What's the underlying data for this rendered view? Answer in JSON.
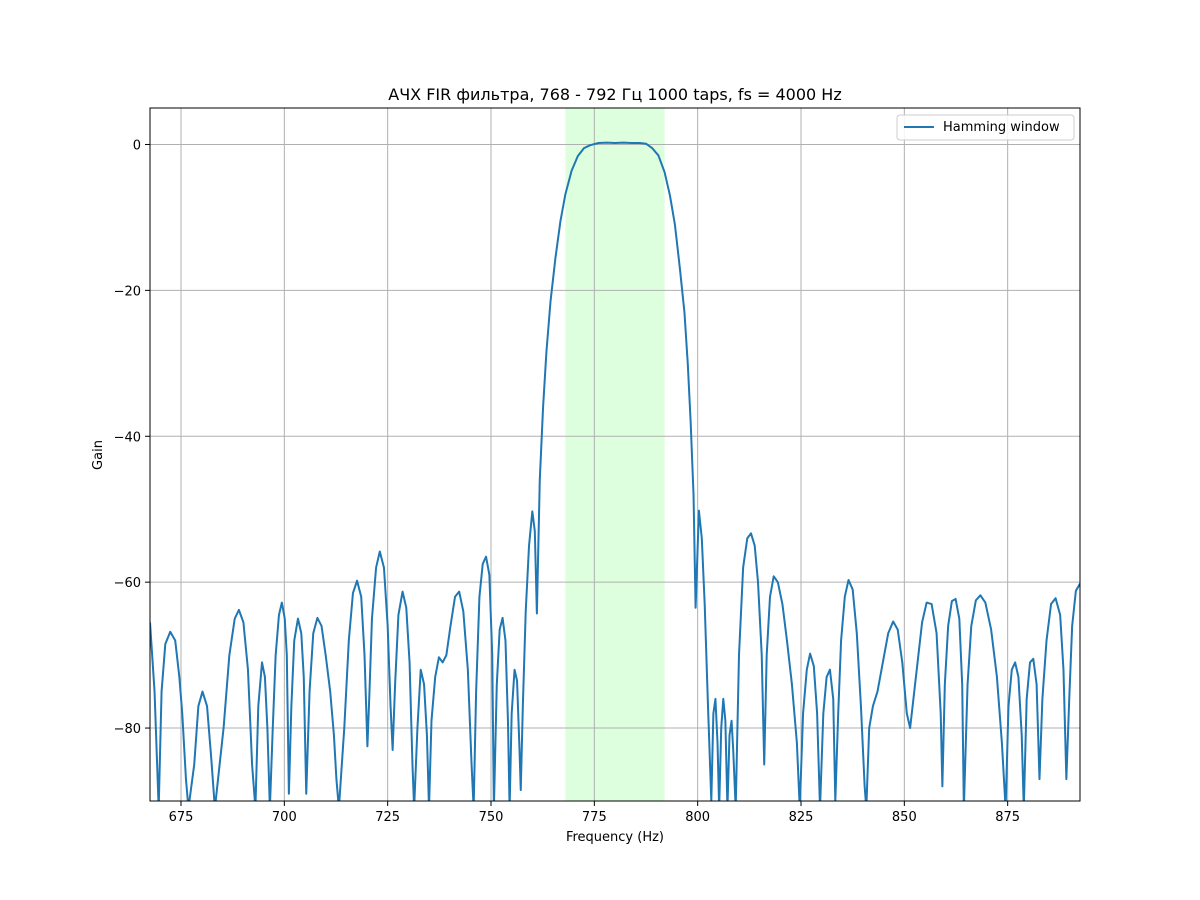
{
  "chart_data": {
    "type": "line",
    "title": "АЧХ FIR фильтра, 768 - 792  Гц 1000 taps, fs = 4000 Hz",
    "xlabel": "Frequency (Hz)",
    "ylabel": "Gain",
    "xlim": [
      667.5,
      892.5
    ],
    "ylim": [
      -90,
      5
    ],
    "xticks": [
      675,
      700,
      725,
      750,
      775,
      800,
      825,
      850,
      875
    ],
    "yticks": [
      0,
      -20,
      -40,
      -60,
      -80
    ],
    "grid": true,
    "legend_position": "top-right",
    "passband_highlight": {
      "x_range": [
        768,
        792
      ],
      "color": "#ddffdd"
    },
    "series": [
      {
        "name": "Hamming window",
        "color": "#1f77b4",
        "points": [
          [
            667.5,
            -65.5
          ],
          [
            668.6,
            -75
          ],
          [
            669.6,
            -91
          ],
          [
            670.3,
            -75
          ],
          [
            671.2,
            -68.5
          ],
          [
            672.4,
            -66.8
          ],
          [
            673.6,
            -68
          ],
          [
            674.6,
            -73
          ],
          [
            675.3,
            -78
          ],
          [
            676.2,
            -87
          ],
          [
            676.8,
            -91
          ],
          [
            678.2,
            -85
          ],
          [
            679.2,
            -77
          ],
          [
            680.2,
            -75
          ],
          [
            681.3,
            -77
          ],
          [
            682.3,
            -84
          ],
          [
            683.2,
            -91
          ],
          [
            685.3,
            -80
          ],
          [
            686.7,
            -70
          ],
          [
            688,
            -65
          ],
          [
            689,
            -63.8
          ],
          [
            690.1,
            -65.5
          ],
          [
            691.2,
            -72
          ],
          [
            692.2,
            -85
          ],
          [
            693,
            -91
          ],
          [
            693.7,
            -77
          ],
          [
            694.6,
            -71
          ],
          [
            695.3,
            -73
          ],
          [
            695.9,
            -80
          ],
          [
            696.5,
            -91
          ],
          [
            697.2,
            -80
          ],
          [
            697.9,
            -70
          ],
          [
            698.7,
            -64.5
          ],
          [
            699.4,
            -62.8
          ],
          [
            700.1,
            -65
          ],
          [
            700.6,
            -70
          ],
          [
            701.1,
            -89
          ],
          [
            701.7,
            -77
          ],
          [
            702.4,
            -68
          ],
          [
            703.3,
            -65
          ],
          [
            704.1,
            -67
          ],
          [
            704.7,
            -73
          ],
          [
            705.3,
            -89
          ],
          [
            706.1,
            -75
          ],
          [
            707,
            -67
          ],
          [
            708,
            -64.9
          ],
          [
            709,
            -66
          ],
          [
            710,
            -70
          ],
          [
            711.1,
            -75
          ],
          [
            712,
            -81
          ],
          [
            712.6,
            -87
          ],
          [
            713.2,
            -91
          ],
          [
            714.5,
            -80
          ],
          [
            715.6,
            -68
          ],
          [
            716.6,
            -61.5
          ],
          [
            717.6,
            -59.8
          ],
          [
            718.6,
            -62
          ],
          [
            719.4,
            -70
          ],
          [
            720.1,
            -82.5
          ],
          [
            720.6,
            -75
          ],
          [
            721.2,
            -65
          ],
          [
            722.2,
            -58
          ],
          [
            723.1,
            -55.8
          ],
          [
            724.1,
            -58
          ],
          [
            725,
            -66
          ],
          [
            725.7,
            -77
          ],
          [
            726.2,
            -83
          ],
          [
            726.8,
            -74
          ],
          [
            727.6,
            -64.5
          ],
          [
            728.6,
            -61.3
          ],
          [
            729.5,
            -63.5
          ],
          [
            730.3,
            -71
          ],
          [
            731,
            -85
          ],
          [
            731.4,
            -91
          ],
          [
            732.2,
            -80
          ],
          [
            733,
            -72
          ],
          [
            733.8,
            -74
          ],
          [
            734.5,
            -81
          ],
          [
            735,
            -91
          ],
          [
            735.6,
            -79
          ],
          [
            736.5,
            -73
          ],
          [
            737.4,
            -70.3
          ],
          [
            738.3,
            -71
          ],
          [
            739.2,
            -70
          ],
          [
            740.2,
            -66
          ],
          [
            741.3,
            -62
          ],
          [
            742.3,
            -61.3
          ],
          [
            743.3,
            -64
          ],
          [
            744.4,
            -72
          ],
          [
            745.3,
            -85
          ],
          [
            745.8,
            -91
          ],
          [
            746.4,
            -75
          ],
          [
            747.2,
            -62
          ],
          [
            748,
            -57.5
          ],
          [
            748.8,
            -56.5
          ],
          [
            749.6,
            -59
          ],
          [
            750.3,
            -70
          ],
          [
            750.7,
            -91
          ],
          [
            751.4,
            -74
          ],
          [
            752.1,
            -66.5
          ],
          [
            752.8,
            -64.9
          ],
          [
            753.5,
            -68
          ],
          [
            754.1,
            -79
          ],
          [
            754.5,
            -91
          ],
          [
            755,
            -78
          ],
          [
            755.7,
            -72
          ],
          [
            756.3,
            -73.5
          ],
          [
            756.9,
            -83
          ],
          [
            757.2,
            -88.5
          ],
          [
            757.7,
            -77
          ],
          [
            758.4,
            -64
          ],
          [
            759.2,
            -55
          ],
          [
            760,
            -50.3
          ],
          [
            760.6,
            -53
          ],
          [
            761.1,
            -64.3
          ],
          [
            761.8,
            -46
          ],
          [
            762.6,
            -36
          ],
          [
            763.4,
            -28.5
          ],
          [
            764.4,
            -21.5
          ],
          [
            765.6,
            -15.5
          ],
          [
            766.8,
            -10.5
          ],
          [
            768,
            -6.8
          ],
          [
            769.5,
            -3.6
          ],
          [
            771,
            -1.6
          ],
          [
            772.5,
            -0.5
          ],
          [
            774,
            -0.1
          ],
          [
            776,
            0.2
          ],
          [
            778,
            0.25
          ],
          [
            780,
            0.2
          ],
          [
            782,
            0.25
          ],
          [
            784,
            0.2
          ],
          [
            786,
            0.2
          ],
          [
            787.5,
            0.1
          ],
          [
            789,
            -0.5
          ],
          [
            790.5,
            -1.5
          ],
          [
            792,
            -3.8
          ],
          [
            793.3,
            -7
          ],
          [
            794.5,
            -11
          ],
          [
            795.7,
            -17
          ],
          [
            796.8,
            -23
          ],
          [
            797.6,
            -30
          ],
          [
            798.3,
            -38
          ],
          [
            799,
            -48
          ],
          [
            799.5,
            -63.5
          ],
          [
            800.3,
            -50.2
          ],
          [
            801,
            -54
          ],
          [
            801.7,
            -63
          ],
          [
            802.5,
            -77
          ],
          [
            803.3,
            -90
          ],
          [
            803.8,
            -78
          ],
          [
            804.3,
            -76
          ],
          [
            804.8,
            -82
          ],
          [
            805.2,
            -91
          ],
          [
            805.7,
            -80
          ],
          [
            806.2,
            -76
          ],
          [
            806.7,
            -79
          ],
          [
            807.2,
            -91
          ],
          [
            807.7,
            -81
          ],
          [
            808.2,
            -79
          ],
          [
            808.6,
            -83
          ],
          [
            809.2,
            -91
          ],
          [
            810,
            -70
          ],
          [
            811,
            -58
          ],
          [
            812,
            -54
          ],
          [
            812.9,
            -53.3
          ],
          [
            813.8,
            -55
          ],
          [
            814.6,
            -60
          ],
          [
            815.5,
            -70
          ],
          [
            816.1,
            -85
          ],
          [
            816.7,
            -70
          ],
          [
            817.5,
            -62
          ],
          [
            818.4,
            -59.2
          ],
          [
            819.4,
            -60
          ],
          [
            820.5,
            -63
          ],
          [
            821.6,
            -68
          ],
          [
            822.8,
            -74
          ],
          [
            824,
            -82
          ],
          [
            824.7,
            -91
          ],
          [
            825.5,
            -78
          ],
          [
            826.4,
            -72
          ],
          [
            827.2,
            -69.8
          ],
          [
            828.1,
            -71.5
          ],
          [
            828.9,
            -78
          ],
          [
            829.6,
            -91
          ],
          [
            830.4,
            -78
          ],
          [
            831.2,
            -73
          ],
          [
            832,
            -72
          ],
          [
            832.8,
            -76
          ],
          [
            833.3,
            -90
          ],
          [
            834,
            -78
          ],
          [
            834.7,
            -68
          ],
          [
            835.6,
            -62
          ],
          [
            836.5,
            -59.7
          ],
          [
            837.5,
            -61
          ],
          [
            838.5,
            -67
          ],
          [
            839.5,
            -77
          ],
          [
            840.4,
            -88
          ],
          [
            840.8,
            -91
          ],
          [
            841.5,
            -80
          ],
          [
            842.4,
            -77
          ],
          [
            843.5,
            -75
          ],
          [
            844.8,
            -71
          ],
          [
            846.1,
            -67
          ],
          [
            847.3,
            -65.4
          ],
          [
            848.4,
            -66.5
          ],
          [
            849.5,
            -71
          ],
          [
            850.6,
            -78
          ],
          [
            851.4,
            -80
          ],
          [
            852.2,
            -76
          ],
          [
            853.2,
            -71
          ],
          [
            854.3,
            -65.5
          ],
          [
            855.4,
            -62.8
          ],
          [
            856.6,
            -63
          ],
          [
            857.8,
            -67
          ],
          [
            858.8,
            -78
          ],
          [
            859.2,
            -88
          ],
          [
            859.8,
            -74
          ],
          [
            860.6,
            -66
          ],
          [
            861.5,
            -62.6
          ],
          [
            862.4,
            -62.3
          ],
          [
            863.3,
            -65
          ],
          [
            864,
            -74
          ],
          [
            864.4,
            -91
          ],
          [
            865.3,
            -74
          ],
          [
            866.2,
            -66
          ],
          [
            867.3,
            -62.5
          ],
          [
            868.4,
            -61.8
          ],
          [
            869.6,
            -62.8
          ],
          [
            871,
            -66.5
          ],
          [
            872.4,
            -73
          ],
          [
            873.6,
            -82
          ],
          [
            874.5,
            -91
          ],
          [
            875.2,
            -77
          ],
          [
            876,
            -72
          ],
          [
            876.8,
            -71
          ],
          [
            877.6,
            -73
          ],
          [
            878.4,
            -81
          ],
          [
            878.9,
            -91
          ],
          [
            879.6,
            -76
          ],
          [
            880.4,
            -71
          ],
          [
            881.2,
            -70.5
          ],
          [
            882,
            -74
          ],
          [
            882.7,
            -87
          ],
          [
            883.4,
            -76
          ],
          [
            884.4,
            -68
          ],
          [
            885.5,
            -63
          ],
          [
            886.6,
            -62.2
          ],
          [
            887.7,
            -64.5
          ],
          [
            888.5,
            -72
          ],
          [
            889.2,
            -87
          ],
          [
            889.9,
            -76
          ],
          [
            890.6,
            -66
          ],
          [
            891.5,
            -61.2
          ],
          [
            892.5,
            -60.2
          ]
        ]
      }
    ]
  }
}
